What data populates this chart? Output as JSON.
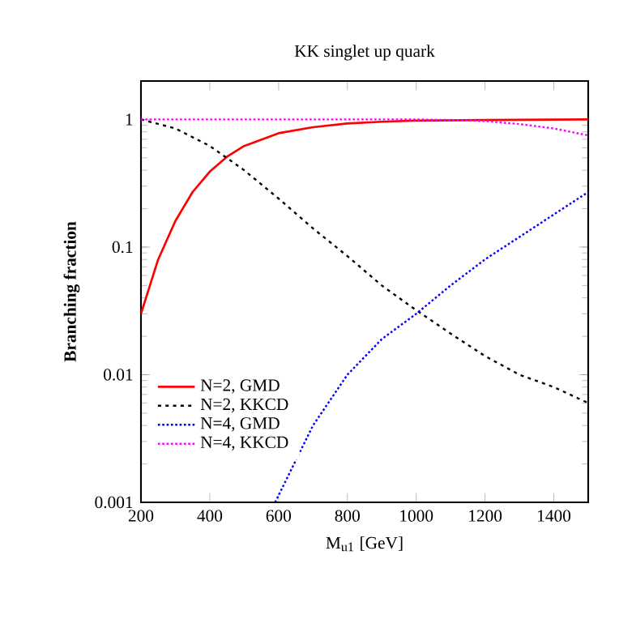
{
  "chart_data": {
    "type": "line",
    "title": "KK singlet up quark",
    "xlabel": "M$_{u1}$ [GeV]",
    "ylabel": "Branching fraction",
    "log": "y",
    "xlim": [
      200,
      1500
    ],
    "ylim": [
      0.001,
      2
    ],
    "xticks": [
      200,
      400,
      600,
      800,
      1000,
      1200,
      1400
    ],
    "yticks": [
      0.001,
      0.01,
      0.1,
      1
    ],
    "legend": "left",
    "series": [
      {
        "name": "N=2, GMD",
        "color": "#ff0000",
        "line_style": "solid",
        "x": [
          200,
          250,
          300,
          350,
          400,
          450,
          500,
          600,
          700,
          800,
          900,
          1000,
          1200,
          1500
        ],
        "values": [
          0.03,
          0.08,
          0.16,
          0.27,
          0.39,
          0.51,
          0.62,
          0.78,
          0.87,
          0.93,
          0.96,
          0.98,
          0.99,
          1.0
        ]
      },
      {
        "name": "N=2, KKCD",
        "color": "#000000",
        "line_style": "dashed",
        "x": [
          200,
          300,
          400,
          500,
          600,
          700,
          800,
          900,
          1000,
          1100,
          1200,
          1300,
          1400,
          1500
        ],
        "values": [
          1.0,
          0.85,
          0.62,
          0.4,
          0.24,
          0.14,
          0.085,
          0.05,
          0.032,
          0.021,
          0.014,
          0.01,
          0.008,
          0.006
        ]
      },
      {
        "name": "N=4, GMD",
        "color": "#0000ff",
        "line_style": "dotted",
        "x": [
          590,
          700,
          800,
          900,
          1000,
          1100,
          1200,
          1300,
          1400,
          1500
        ],
        "values": [
          0.001,
          0.004,
          0.01,
          0.019,
          0.03,
          0.05,
          0.08,
          0.12,
          0.18,
          0.27
        ]
      },
      {
        "name": "N=4, KKCD",
        "color": "#ff00ff",
        "line_style": "dotted",
        "x": [
          200,
          400,
          600,
          800,
          1000,
          1100,
          1200,
          1300,
          1400,
          1500
        ],
        "values": [
          1.0,
          1.0,
          1.0,
          1.0,
          1.0,
          0.99,
          0.97,
          0.92,
          0.85,
          0.75
        ]
      }
    ]
  }
}
